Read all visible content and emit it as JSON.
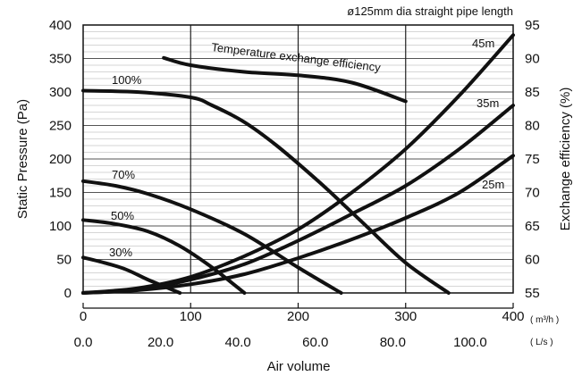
{
  "chart_data": {
    "type": "line",
    "title": "ø125mm dia straight pipe length",
    "xlabel": "Air volume",
    "ylabel_left": "Static Pressure (Pa)",
    "ylabel_right": "Exchange efficiency (%)",
    "x_primary": {
      "unit": "( m³/h )",
      "range": [
        0,
        400
      ],
      "ticks": [
        "0",
        "100",
        "200",
        "300",
        "400"
      ]
    },
    "x_secondary": {
      "unit": "( L/s )",
      "range": [
        0,
        111.11
      ],
      "ticks": [
        "0.0",
        "20.0",
        "40.0",
        "60.0",
        "80.0",
        "100.0"
      ]
    },
    "y_left": {
      "range": [
        0,
        400
      ],
      "ticks": [
        "0",
        "50",
        "100",
        "150",
        "200",
        "250",
        "300",
        "350",
        "400"
      ]
    },
    "y_right": {
      "range": [
        55,
        95
      ],
      "ticks": [
        "55",
        "60",
        "65",
        "70",
        "75",
        "80",
        "85",
        "90",
        "95"
      ]
    },
    "grid": true,
    "series": [
      {
        "name": "Temperature exchange efficiency",
        "axis": "right",
        "x": [
          75,
          100,
          150,
          200,
          250,
          300
        ],
        "y": [
          90.1,
          89,
          88,
          87.5,
          86.4,
          83.6
        ]
      },
      {
        "name": "100%",
        "axis": "left",
        "x": [
          0,
          50,
          100,
          120,
          150,
          180,
          220,
          260,
          300,
          340
        ],
        "y": [
          302,
          300,
          292,
          280,
          255,
          220,
          165,
          105,
          45,
          0
        ]
      },
      {
        "name": "70%",
        "axis": "left",
        "x": [
          0,
          30,
          60,
          100,
          150,
          200,
          240
        ],
        "y": [
          167,
          160,
          148,
          125,
          88,
          38,
          0
        ]
      },
      {
        "name": "50%",
        "axis": "left",
        "x": [
          0,
          30,
          60,
          90,
          120,
          150
        ],
        "y": [
          109,
          103,
          92,
          70,
          38,
          0
        ]
      },
      {
        "name": "30%",
        "axis": "left",
        "x": [
          0,
          20,
          40,
          60,
          75,
          90
        ],
        "y": [
          53,
          45,
          35,
          20,
          10,
          0
        ]
      },
      {
        "name": "45m",
        "axis": "left",
        "x": [
          0,
          50,
          100,
          150,
          200,
          250,
          300,
          350,
          400
        ],
        "y": [
          0,
          7,
          24,
          55,
          95,
          150,
          215,
          295,
          385
        ]
      },
      {
        "name": "35m",
        "axis": "left",
        "x": [
          0,
          50,
          100,
          150,
          200,
          250,
          300,
          350,
          400
        ],
        "y": [
          0,
          5,
          20,
          43,
          78,
          118,
          160,
          215,
          280
        ]
      },
      {
        "name": "25m",
        "axis": "left",
        "x": [
          0,
          50,
          100,
          150,
          200,
          250,
          300,
          350,
          400
        ],
        "y": [
          0,
          4,
          13,
          28,
          52,
          80,
          112,
          150,
          205
        ]
      }
    ]
  }
}
